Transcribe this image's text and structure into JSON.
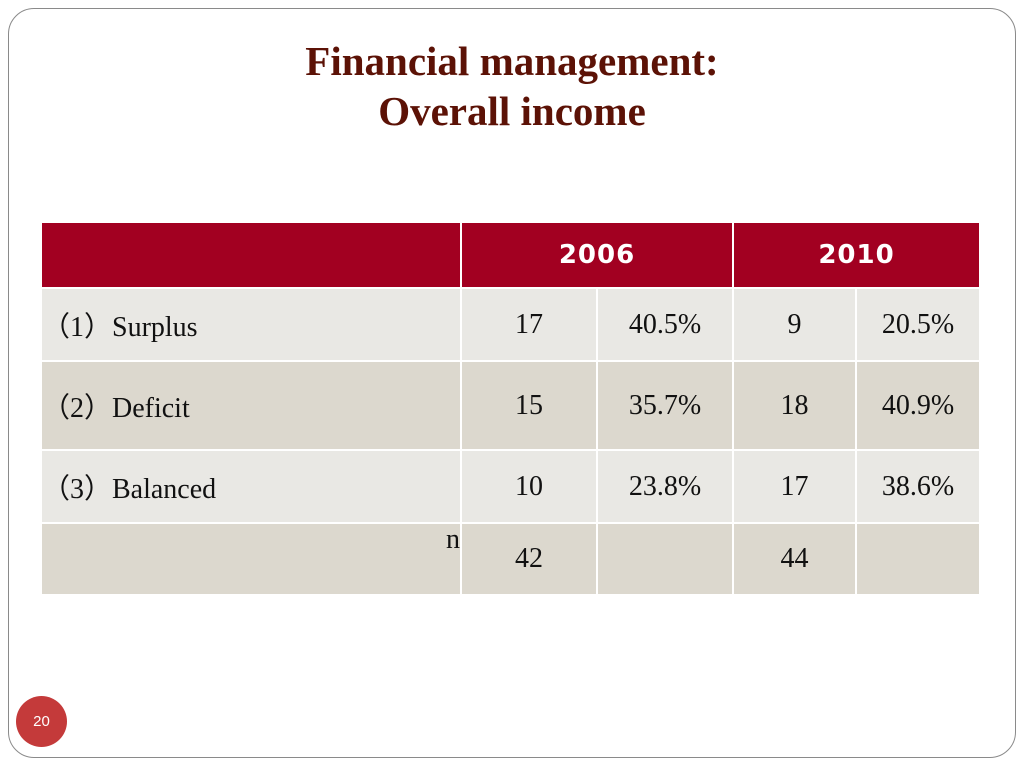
{
  "slide": {
    "title_line1": "Financial management:",
    "title_line2": "Overall income",
    "page_number": "20"
  },
  "table": {
    "header": [
      "",
      "2006",
      "2010"
    ],
    "rows": [
      {
        "label": "（1）Surplus",
        "c2006_n": "17",
        "c2006_pct": "40.5%",
        "c2010_n": "9",
        "c2010_pct": "20.5%"
      },
      {
        "label": "（2）Deficit",
        "c2006_n": "15",
        "c2006_pct": "35.7%",
        "c2010_n": "18",
        "c2010_pct": "40.9%"
      },
      {
        "label": "（3）Balanced",
        "c2006_n": "10",
        "c2006_pct": "23.8%",
        "c2010_n": "17",
        "c2010_pct": "38.6%"
      }
    ],
    "total": {
      "label": "n",
      "c2006_n": "42",
      "c2006_pct": "",
      "c2010_n": "44",
      "c2010_pct": ""
    }
  },
  "colors": {
    "title": "#5c1206",
    "header_bg": "#a20021",
    "row_light": "#e9e8e4",
    "row_dark": "#dcd8ce",
    "page_badge": "#c43a3a"
  }
}
